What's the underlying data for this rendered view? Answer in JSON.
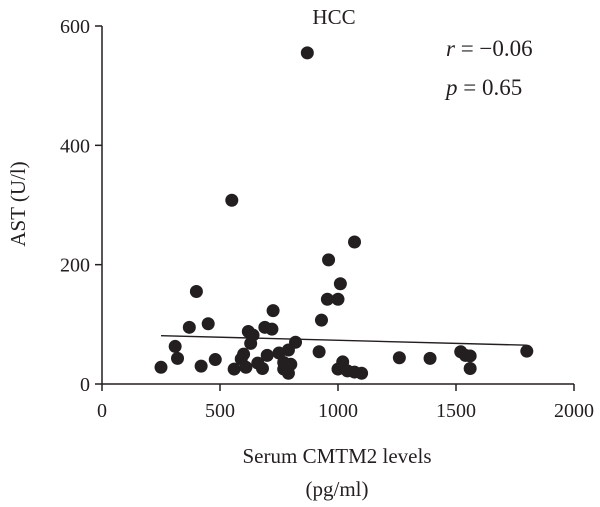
{
  "chart_data": {
    "type": "scatter",
    "title": "HCC",
    "xlabel_line1": "Serum CMTM2 levels",
    "xlabel_line2": "(pg/ml)",
    "ylabel": "AST (U/l)",
    "xlim": [
      0,
      2000
    ],
    "ylim": [
      0,
      600
    ],
    "xticks": [
      0,
      500,
      1000,
      1500,
      2000
    ],
    "yticks": [
      0,
      200,
      400,
      600
    ],
    "grid": false,
    "stats": {
      "r_symbol": "r",
      "r_value": " = −0.06",
      "p_symbol": "p",
      "p_value": " = 0.65"
    },
    "points": [
      {
        "x": 870,
        "y": 555
      },
      {
        "x": 550,
        "y": 308
      },
      {
        "x": 1070,
        "y": 238
      },
      {
        "x": 960,
        "y": 208
      },
      {
        "x": 1010,
        "y": 168
      },
      {
        "x": 400,
        "y": 155
      },
      {
        "x": 955,
        "y": 142
      },
      {
        "x": 1000,
        "y": 142
      },
      {
        "x": 725,
        "y": 123
      },
      {
        "x": 930,
        "y": 107
      },
      {
        "x": 450,
        "y": 101
      },
      {
        "x": 370,
        "y": 95
      },
      {
        "x": 690,
        "y": 95
      },
      {
        "x": 720,
        "y": 92
      },
      {
        "x": 620,
        "y": 88
      },
      {
        "x": 640,
        "y": 82
      },
      {
        "x": 820,
        "y": 70
      },
      {
        "x": 630,
        "y": 68
      },
      {
        "x": 310,
        "y": 63
      },
      {
        "x": 790,
        "y": 57
      },
      {
        "x": 920,
        "y": 54
      },
      {
        "x": 1520,
        "y": 54
      },
      {
        "x": 1800,
        "y": 55
      },
      {
        "x": 1540,
        "y": 48
      },
      {
        "x": 1560,
        "y": 47
      },
      {
        "x": 600,
        "y": 50
      },
      {
        "x": 700,
        "y": 48
      },
      {
        "x": 750,
        "y": 52
      },
      {
        "x": 480,
        "y": 41
      },
      {
        "x": 320,
        "y": 43
      },
      {
        "x": 590,
        "y": 42
      },
      {
        "x": 1260,
        "y": 44
      },
      {
        "x": 1390,
        "y": 43
      },
      {
        "x": 1020,
        "y": 37
      },
      {
        "x": 660,
        "y": 35
      },
      {
        "x": 770,
        "y": 36
      },
      {
        "x": 800,
        "y": 33
      },
      {
        "x": 420,
        "y": 30
      },
      {
        "x": 250,
        "y": 28
      },
      {
        "x": 560,
        "y": 25
      },
      {
        "x": 610,
        "y": 28
      },
      {
        "x": 680,
        "y": 26
      },
      {
        "x": 770,
        "y": 25
      },
      {
        "x": 1000,
        "y": 25
      },
      {
        "x": 1040,
        "y": 22
      },
      {
        "x": 1560,
        "y": 26
      },
      {
        "x": 1070,
        "y": 20
      },
      {
        "x": 1100,
        "y": 18
      },
      {
        "x": 790,
        "y": 18
      }
    ],
    "fit_line": {
      "x": [
        250,
        1800
      ],
      "y": [
        81,
        65
      ]
    }
  }
}
